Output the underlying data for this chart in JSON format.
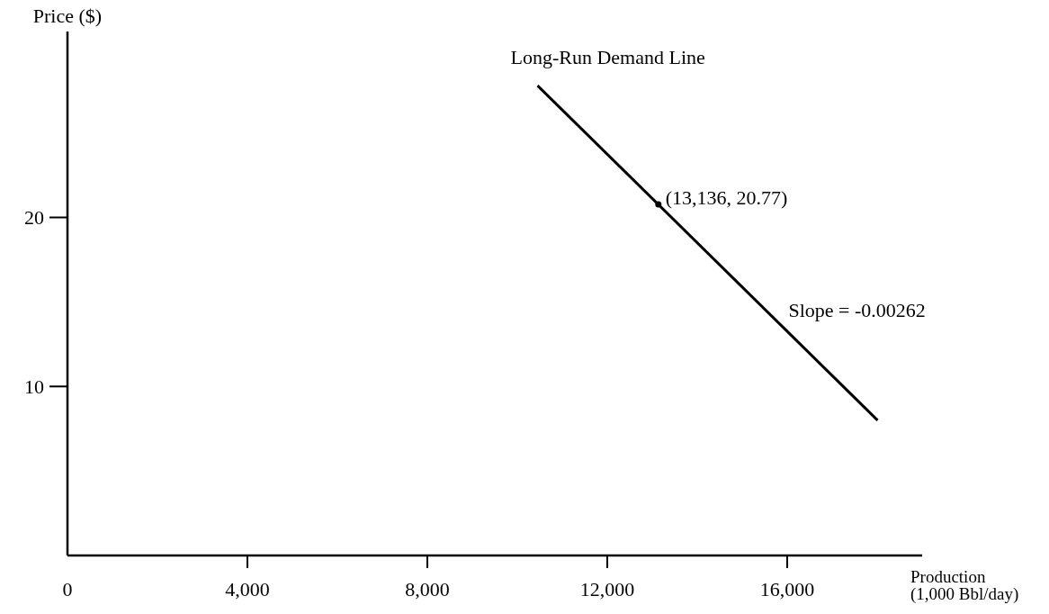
{
  "chart_data": {
    "type": "line",
    "xlabel": "Production\n(1,000 Bbl/day)",
    "ylabel": "Price ($)",
    "xlim": [
      0,
      19000
    ],
    "ylim": [
      0,
      31
    ],
    "xticks": [
      0,
      {
        "value": 4000,
        "label": "4,000"
      },
      {
        "value": 8000,
        "label": "8,000"
      },
      {
        "value": 12000,
        "label": "12,000"
      },
      {
        "value": 16000,
        "label": "16,000"
      }
    ],
    "yticks": [
      10,
      20
    ],
    "grid": false,
    "marker": "none",
    "line_style": "solid",
    "series": [
      {
        "name": "Long-Run Demand Line",
        "color": "#000000",
        "x": [
          10450,
          18010
        ],
        "values": [
          27.8,
          8.0
        ]
      },
      {
        "type": "scatter",
        "color": "#000000",
        "marker": "circle",
        "x": [
          13136
        ],
        "values": [
          20.77
        ]
      }
    ],
    "annotations": [
      {
        "text": "(13,136, 20.77)",
        "x": 13136,
        "y": 20.77
      },
      {
        "text": "Slope = -0.00262",
        "x": 15529,
        "y": 14.5
      }
    ]
  }
}
